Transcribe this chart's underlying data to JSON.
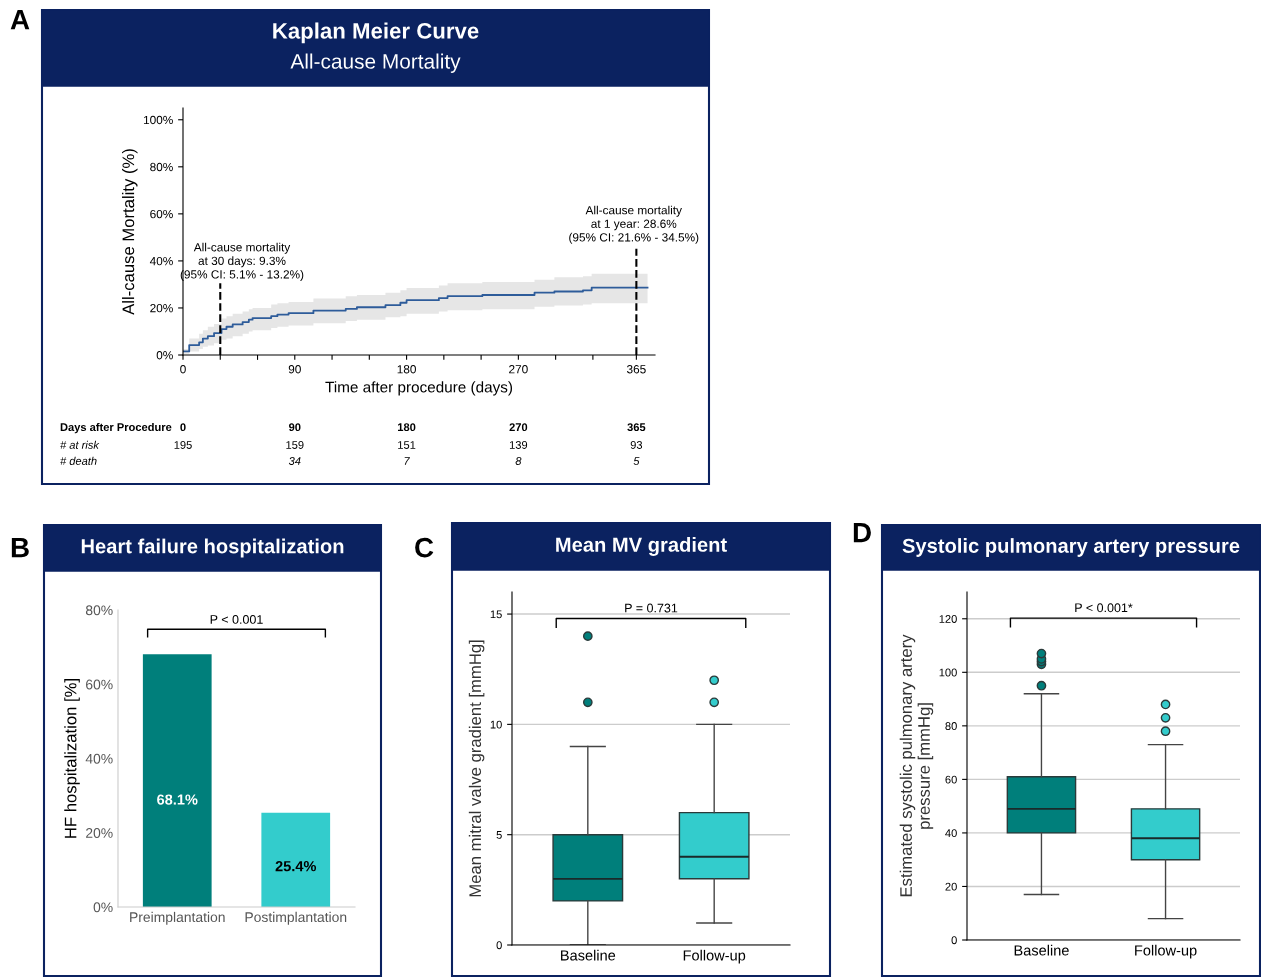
{
  "chart_data": [
    {
      "type": "step",
      "title": "Kaplan Meier Curve",
      "subtitle": "All-cause Mortality",
      "xlabel": "Time after procedure (days)",
      "ylabel": "All-cause Mortality (%)",
      "series": [
        {
          "color": "#2e5c9a",
          "x": [
            0,
            5,
            13,
            16,
            20,
            25,
            31,
            35,
            40,
            48,
            53,
            56,
            71,
            76,
            85,
            105,
            131,
            140,
            163,
            175,
            180,
            206,
            213,
            241,
            283,
            299,
            322,
            329,
            374
          ],
          "values": [
            1.5,
            4.2,
            5.4,
            7,
            8,
            9.3,
            11,
            12,
            13,
            14,
            15,
            15.7,
            16.5,
            17.2,
            17.8,
            18.9,
            19.6,
            20.3,
            21.2,
            22.2,
            23.3,
            24.2,
            25,
            25.5,
            26.5,
            27,
            27.5,
            28.6,
            28.6
          ],
          "lower": [
            0.5,
            1.5,
            2.5,
            3.5,
            4,
            5,
            6.5,
            7,
            8,
            9,
            10,
            10.5,
            11.5,
            12,
            12.5,
            13.5,
            14.5,
            15,
            16,
            16.5,
            17.5,
            18.5,
            19,
            19.5,
            20.5,
            21,
            21.5,
            22,
            21.6
          ],
          "upper": [
            2.5,
            7,
            9,
            10.5,
            12,
            13.2,
            15.5,
            16.5,
            17.5,
            18.5,
            19.5,
            20,
            21.5,
            22,
            22.5,
            24,
            25,
            25.5,
            26.5,
            27.5,
            28.5,
            29.5,
            30.5,
            31,
            32,
            33,
            33.5,
            34.5,
            34.5
          ]
        }
      ],
      "xlim": [
        0,
        380
      ],
      "ylim": [
        0,
        105
      ],
      "xticks": [
        0,
        {
          "value": 30,
          "label": null
        },
        {
          "value": 60,
          "label": null
        },
        90,
        {
          "value": 120,
          "label": null
        },
        {
          "value": 150,
          "label": null
        },
        180,
        {
          "value": 210,
          "label": null
        },
        {
          "value": 240,
          "label": null
        },
        270,
        {
          "value": 300,
          "label": null
        },
        {
          "value": 330,
          "label": null
        },
        365
      ],
      "yticks": [
        {
          "value": 0,
          "label": "0%"
        },
        {
          "value": 20,
          "label": "20%"
        },
        {
          "value": 40,
          "label": "40%"
        },
        {
          "value": 60,
          "label": "60%"
        },
        {
          "value": 80,
          "label": "80%"
        },
        {
          "value": 100,
          "label": "100%"
        }
      ],
      "ref_lines": [
        {
          "axis": "x",
          "value": 30,
          "color": "#000000",
          "line_style": "dashed"
        },
        {
          "axis": "x",
          "value": 365,
          "color": "#000000",
          "line_style": "dashed"
        }
      ],
      "annotations": [
        "A",
        "All-cause mortality\nat 30 days: 9.3%\n(95% CI: 5.1% - 13.2%)",
        "All-cause mortality\nat 1 year: 28.6%\n(95% CI: 21.6% - 34.5%)",
        "Days after Procedure",
        "0",
        "90",
        "180",
        "270",
        "365",
        "# at risk",
        "195",
        "159",
        "151",
        "139",
        "93",
        "# death",
        "34",
        "7",
        "8",
        "5"
      ]
    },
    {
      "type": "bar",
      "title": "Heart failure hospitalization",
      "ylabel": "HF hospitalization [%]",
      "categories": [
        "Preimplantation",
        "Postimplantation"
      ],
      "values": [
        68.1,
        25.4
      ],
      "colors": [
        "#007f7b",
        "#33cccc"
      ],
      "value_labels": [
        "68.1%",
        "25.4%"
      ],
      "ylim": [
        0,
        80
      ],
      "yticks": [
        {
          "value": 0,
          "label": "0%"
        },
        {
          "value": 20,
          "label": "20%"
        },
        {
          "value": 40,
          "label": "40%"
        },
        {
          "value": 60,
          "label": "60%"
        },
        {
          "value": 80,
          "label": "80%"
        }
      ],
      "annotations": [
        "B",
        "P < 0.001"
      ]
    },
    {
      "type": "box",
      "title": "Mean MV gradient",
      "ylabel": "Mean mitral valve gradient [mmHg]",
      "categories": [
        "Baseline",
        "Follow-up"
      ],
      "colors": [
        "#007f7b",
        "#33cccc"
      ],
      "boxes": [
        {
          "low": 0,
          "q1": 2,
          "median": 3,
          "q3": 5,
          "high": 9,
          "outliers": [
            11,
            14
          ]
        },
        {
          "low": 1,
          "q1": 3,
          "median": 4,
          "q3": 6,
          "high": 10,
          "outliers": [
            11,
            12
          ]
        }
      ],
      "ylim": [
        0,
        16
      ],
      "yticks": [
        0,
        5,
        10,
        15
      ],
      "grid": "y",
      "annotations": [
        "C",
        "P = 0.731"
      ]
    },
    {
      "type": "box",
      "title": "Systolic pulmonary artery pressure",
      "ylabel": "Estimated systolic pulmonary artery\npressure [mmHg]",
      "categories": [
        "Baseline",
        "Follow-up"
      ],
      "colors": [
        "#007f7b",
        "#33cccc"
      ],
      "boxes": [
        {
          "low": 17,
          "q1": 40,
          "median": 49,
          "q3": 61,
          "high": 92,
          "outliers": [
            95,
            103,
            104,
            105,
            107
          ]
        },
        {
          "low": 8,
          "q1": 30,
          "median": 38,
          "q3": 49,
          "high": 73,
          "outliers": [
            78,
            83,
            88
          ]
        }
      ],
      "ylim": [
        0,
        130
      ],
      "yticks": [
        0,
        20,
        40,
        60,
        80,
        100,
        120
      ],
      "grid": "y",
      "annotations": [
        "D",
        "P < 0.001*"
      ]
    }
  ]
}
